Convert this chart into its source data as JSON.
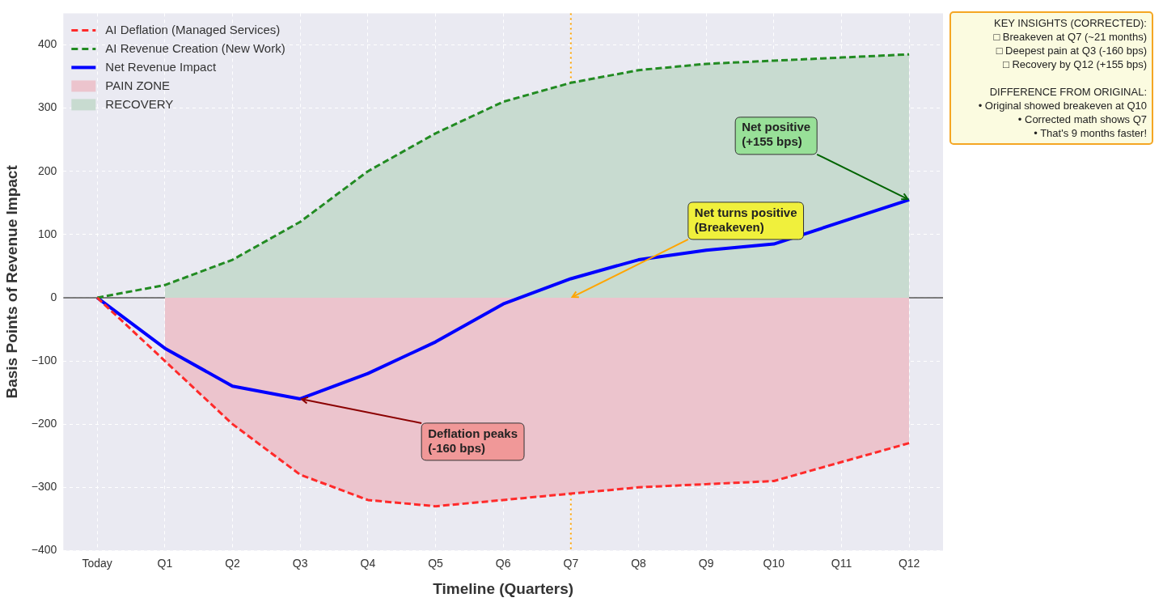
{
  "chart_data": {
    "type": "line",
    "xlabel": "Timeline (Quarters)",
    "ylabel": "Basis Points of Revenue Impact",
    "categories": [
      "Today",
      "Q1",
      "Q2",
      "Q3",
      "Q4",
      "Q5",
      "Q6",
      "Q7",
      "Q8",
      "Q9",
      "Q10",
      "Q11",
      "Q12"
    ],
    "series": [
      {
        "name": "PAIN ZONE",
        "type": "area",
        "color": "#ecc4cd",
        "values": [
          null,
          -100,
          -200,
          -280,
          -320,
          -330,
          -320,
          -310,
          -300,
          -295,
          -290,
          -260,
          -230
        ]
      },
      {
        "name": "RECOVERY",
        "type": "area",
        "color": "#c8dbd0",
        "values": [
          null,
          20,
          60,
          120,
          200,
          260,
          310,
          340,
          360,
          370,
          375,
          380,
          385
        ]
      },
      {
        "name": "AI Deflation (Managed Services)",
        "type": "line",
        "line_style": "dashed",
        "color": "#ff2a2a",
        "values": [
          0,
          -100,
          -200,
          -280,
          -320,
          -330,
          -320,
          -310,
          -300,
          -295,
          -290,
          -260,
          -230
        ]
      },
      {
        "name": "AI Revenue Creation (New Work)",
        "type": "line",
        "line_style": "dashed",
        "color": "#228b22",
        "values": [
          0,
          20,
          60,
          120,
          200,
          260,
          310,
          340,
          360,
          370,
          375,
          380,
          385
        ]
      },
      {
        "name": "Net Revenue Impact",
        "type": "line",
        "line_style": "solid",
        "color": "#0000ff",
        "values": [
          0,
          -80,
          -140,
          -160,
          -120,
          -70,
          -10,
          30,
          60,
          75,
          85,
          120,
          155
        ]
      }
    ],
    "ylim": [
      -400,
      450
    ],
    "yticks": [
      {
        "value": -400,
        "label": "−400"
      },
      {
        "value": -300,
        "label": "−300"
      },
      {
        "value": -200,
        "label": "−200"
      },
      {
        "value": -100,
        "label": "−100"
      },
      0,
      100,
      200,
      300,
      400
    ],
    "ref_lines": [
      {
        "axis": "y",
        "value": 0,
        "color": "#555555",
        "line_style": "solid"
      },
      {
        "axis": "x",
        "value": "Q7",
        "color": "#ffa500",
        "line_style": "dotted"
      }
    ],
    "annotations": [
      {
        "text": "Deflation peaks\n(-160 bps)",
        "x": "Q3",
        "y": -160
      },
      {
        "text": "Net turns positive\n(Breakeven)",
        "x": "Q7",
        "y": 0
      },
      {
        "text": "Net positive\n(+155 bps)",
        "x": "Q12",
        "y": 155
      },
      "KEY INSIGHTS (CORRECTED):\n□ Breakeven at Q7 (~21 months)\n□ Deepest pain at Q3 (-160 bps)\n□ Recovery by Q12 (+155 bps)\n\nDIFFERENCE FROM ORIGINAL:\n• Original showed breakeven at Q10\n• Corrected math shows Q7\n• That's 9 months faster!"
    ],
    "grid": true,
    "legend": "top left",
    "marker": "none"
  }
}
